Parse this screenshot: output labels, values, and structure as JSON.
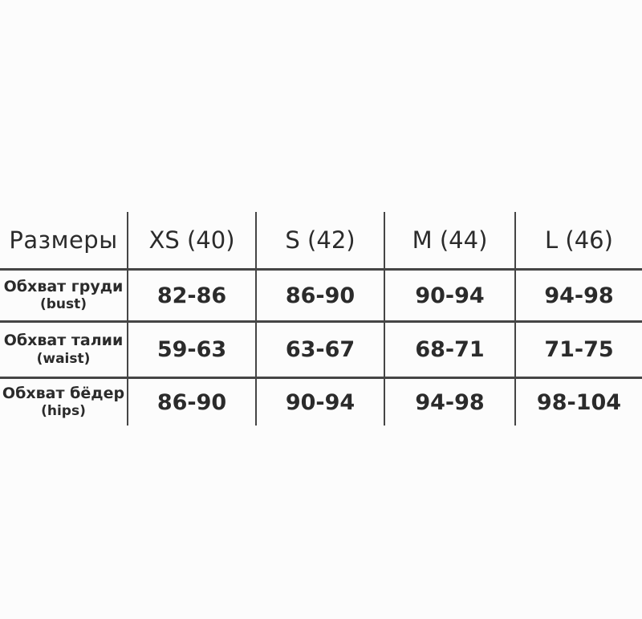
{
  "chart_data": {
    "type": "table",
    "title": "Размеры",
    "columns": [
      "Размеры",
      "XS (40)",
      "S (42)",
      "M (44)",
      "L (46)"
    ],
    "rows": [
      [
        "Обхват груди (bust)",
        "82-86",
        "86-90",
        "90-94",
        "94-98"
      ],
      [
        "Обхват талии (waist)",
        "59-63",
        "63-67",
        "68-71",
        "71-75"
      ],
      [
        "Обхват бёдер (hips)",
        "86-90",
        "90-94",
        "94-98",
        "98-104"
      ]
    ]
  },
  "header": {
    "corner": "Размеры",
    "sizes": [
      "XS (40)",
      "S (42)",
      "M (44)",
      "L (46)"
    ]
  },
  "rows": [
    {
      "label_ru": "Обхват груди",
      "label_en": "(bust)",
      "values": [
        "82-86",
        "86-90",
        "90-94",
        "94-98"
      ]
    },
    {
      "label_ru": "Обхват талии",
      "label_en": "(waist)",
      "values": [
        "59-63",
        "63-67",
        "68-71",
        "71-75"
      ]
    },
    {
      "label_ru": "Обхват бёдер",
      "label_en": "(hips)",
      "values": [
        "86-90",
        "90-94",
        "94-98",
        "98-104"
      ]
    }
  ],
  "colors": {
    "background": "#fcfcfc",
    "line": "#454545",
    "text": "#2b2b2b"
  }
}
